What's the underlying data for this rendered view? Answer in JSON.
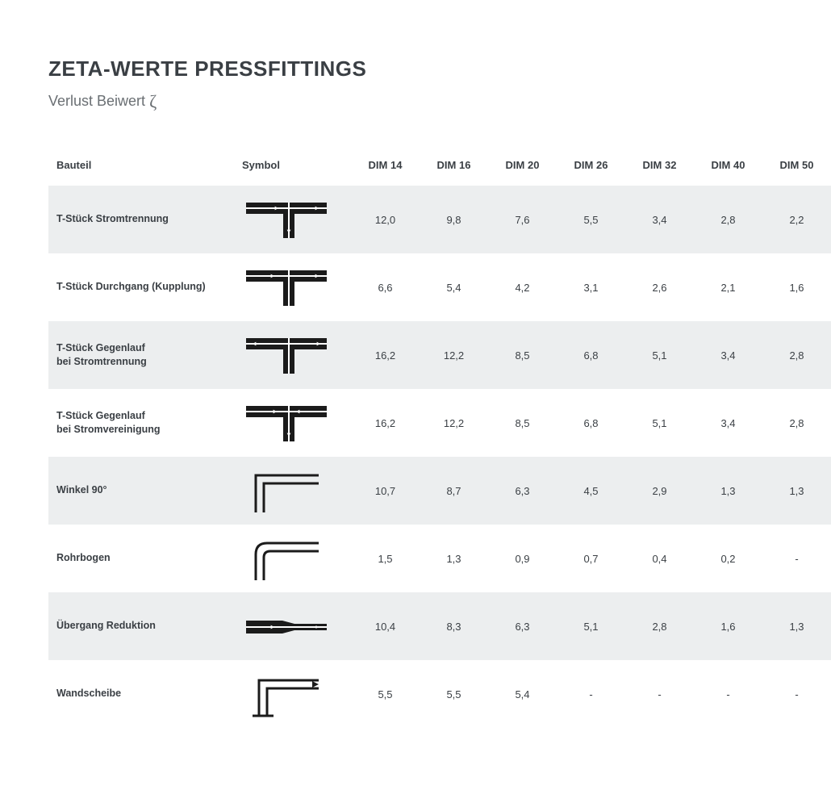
{
  "title": "ZETA-WERTE PRESSFITTINGS",
  "subtitle_prefix": "Verlust Beiwert ",
  "zeta": "ζ",
  "columns": {
    "part": "Bauteil",
    "symbol": "Symbol",
    "dims": [
      "DIM 14",
      "DIM 16",
      "DIM 20",
      "DIM 26",
      "DIM 32",
      "DIM 40",
      "DIM 50"
    ]
  },
  "rows": [
    {
      "name": "T-Stück Stromtrennung",
      "symbol": "t-split",
      "v": [
        "12,0",
        "9,8",
        "7,6",
        "5,5",
        "3,4",
        "2,8",
        "2,2"
      ]
    },
    {
      "name": "T-Stück Durchgang (Kupplung)",
      "symbol": "t-through",
      "v": [
        "6,6",
        "5,4",
        "4,2",
        "3,1",
        "2,6",
        "2,1",
        "1,6"
      ]
    },
    {
      "name": "T-Stück Gegenlauf\nbei Stromtrennung",
      "symbol": "t-counter-split",
      "v": [
        "16,2",
        "12,2",
        "8,5",
        "6,8",
        "5,1",
        "3,4",
        "2,8"
      ]
    },
    {
      "name": "T-Stück Gegenlauf\nbei Stromvereinigung",
      "symbol": "t-counter-merge",
      "v": [
        "16,2",
        "12,2",
        "8,5",
        "6,8",
        "5,1",
        "3,4",
        "2,8"
      ]
    },
    {
      "name": "Winkel 90°",
      "symbol": "angle-90",
      "v": [
        "10,7",
        "8,7",
        "6,3",
        "4,5",
        "2,9",
        "1,3",
        "1,3"
      ]
    },
    {
      "name": "Rohrbogen",
      "symbol": "pipe-bend",
      "v": [
        "1,5",
        "1,3",
        "0,9",
        "0,7",
        "0,4",
        "0,2",
        "-"
      ]
    },
    {
      "name": "Übergang Reduktion",
      "symbol": "reduction",
      "v": [
        "10,4",
        "8,3",
        "6,3",
        "5,1",
        "2,8",
        "1,6",
        "1,3"
      ]
    },
    {
      "name": "Wandscheibe",
      "symbol": "wall-disc",
      "v": [
        "5,5",
        "5,5",
        "5,4",
        "-",
        "-",
        "-",
        "-"
      ]
    }
  ],
  "style": {
    "row_alt_bg": "#eceeef",
    "bg": "#ffffff",
    "text_color": "#3a3f44",
    "muted_color": "#6a6f73",
    "symbol_color": "#1b1b1b",
    "title_fontsize": 26,
    "subtitle_fontsize": 18,
    "cell_fontsize": 13
  }
}
